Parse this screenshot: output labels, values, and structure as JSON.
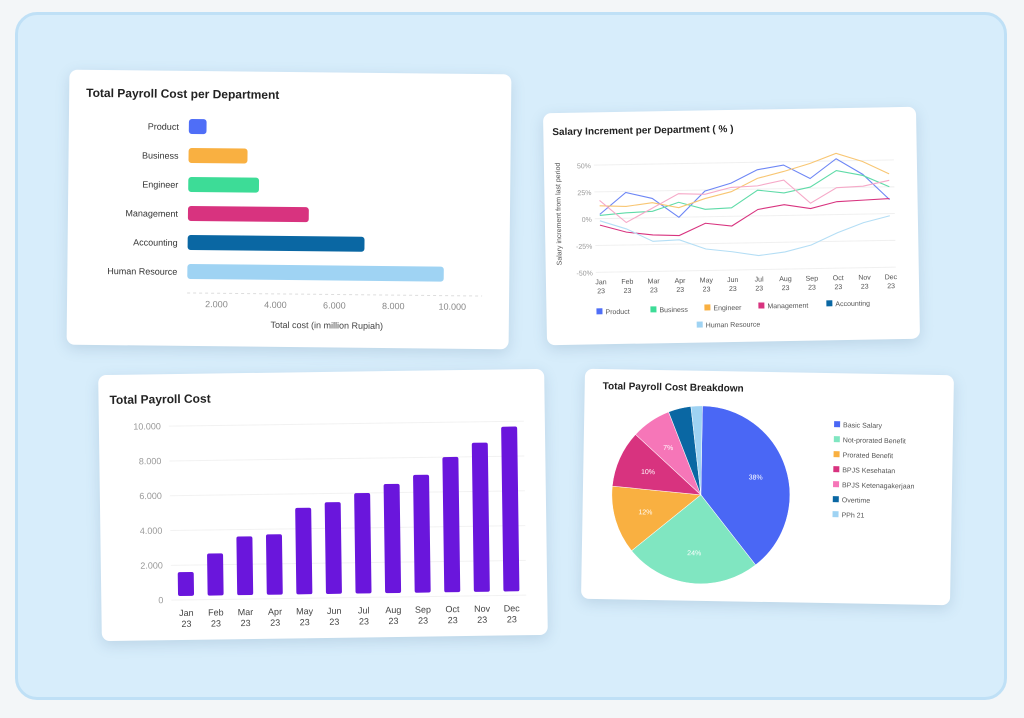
{
  "chart_data": [
    {
      "type": "bar",
      "orientation": "horizontal",
      "title": "Total Payroll Cost per Department",
      "categories": [
        "Product",
        "Business",
        "Engineer",
        "Management",
        "Accounting",
        "Human Resource"
      ],
      "values": [
        1600,
        3000,
        3400,
        5100,
        7000,
        9700
      ],
      "colors": [
        "#4f6ef7",
        "#f9b041",
        "#3ddc97",
        "#d8337f",
        "#0a67a3",
        "#9fd3f3"
      ],
      "xlabel": "Total cost (in million Rupiah)",
      "xticks": [
        "2.000",
        "4.000",
        "6.000",
        "8.000",
        "10.000"
      ],
      "xtick_values": [
        2000,
        4000,
        6000,
        8000,
        10000
      ],
      "xlim": [
        1000,
        10500
      ],
      "grid": false
    },
    {
      "type": "line",
      "title": "Salary Increment per Department ( % )",
      "ylabel": "Salary increment from last period",
      "categories": [
        "Jan 23",
        "Feb 23",
        "Mar 23",
        "Apr 23",
        "May 23",
        "Jun 23",
        "Jul 23",
        "Aug 23",
        "Sep 23",
        "Oct 23",
        "Nov 23",
        "Dec 23"
      ],
      "yticks": [
        "50%",
        "25%",
        "0%",
        "-25%",
        "-50%"
      ],
      "ytick_values": [
        50,
        25,
        0,
        -25,
        -50
      ],
      "ylim": [
        -50,
        60
      ],
      "series": [
        {
          "name": "Product",
          "color": "#6d86f5",
          "values": [
            4,
            24,
            18,
            0,
            24,
            31,
            43,
            47,
            34,
            52,
            37,
            13
          ]
        },
        {
          "name": "Business",
          "color": "#5fdba8",
          "values": [
            3,
            5,
            6,
            14,
            7,
            8,
            24,
            21,
            26,
            41,
            36,
            25
          ]
        },
        {
          "name": "Engineer",
          "color": "#f8c673",
          "values": [
            12,
            11,
            14,
            9,
            17,
            23,
            35,
            41,
            48,
            57,
            49,
            37
          ]
        },
        {
          "name": "Management",
          "color": "#d8337f",
          "values": [
            -6,
            -13,
            -16,
            -17,
            -6,
            -9,
            6,
            10,
            6,
            12,
            13,
            14
          ]
        },
        {
          "name": "",
          "color": "#f6a9c8",
          "values": [
            17,
            -4,
            9,
            22,
            21,
            27,
            28,
            33,
            11,
            25,
            26,
            31
          ]
        },
        {
          "name": "Human Resource",
          "color": "#b4def5",
          "values": [
            -2,
            -10,
            -22,
            -21,
            -30,
            -33,
            -37,
            -34,
            -28,
            -17,
            -8,
            -2
          ]
        }
      ],
      "legend": [
        {
          "name": "Product",
          "color": "#4f6ef7"
        },
        {
          "name": "Business",
          "color": "#3ddc97"
        },
        {
          "name": "Engineer",
          "color": "#f9b041"
        },
        {
          "name": "Management",
          "color": "#d8337f"
        },
        {
          "name": "Accounting",
          "color": "#0a67a3"
        },
        {
          "name": "Human Resource",
          "color": "#9fd3f3"
        }
      ],
      "legend_position": "bottom",
      "grid": true
    },
    {
      "type": "bar",
      "title": "Total Payroll Cost",
      "categories": [
        "Jan 23",
        "Feb 23",
        "Mar 23",
        "Apr 23",
        "May 23",
        "Jun 23",
        "Jul 23",
        "Aug 23",
        "Sep 23",
        "Oct 23",
        "Nov 23",
        "Dec 23"
      ],
      "values": [
        1600,
        2650,
        3600,
        3700,
        5200,
        5500,
        6000,
        6500,
        7000,
        8000,
        8800,
        9700
      ],
      "color": "#6a16dc",
      "yticks": [
        "10.000",
        "8.000",
        "6.000",
        "4.000",
        "2.000",
        "0"
      ],
      "ytick_values": [
        10000,
        8000,
        6000,
        4000,
        2000,
        0
      ],
      "ylim": [
        0,
        10000
      ],
      "grid": true
    },
    {
      "type": "pie",
      "title": "Total Payroll Cost Breakdown",
      "slices": [
        {
          "name": "Basic Salary",
          "value": 38,
          "label": "38%",
          "color": "#4a67f5"
        },
        {
          "name": "Not-prorated Benefit",
          "value": 24,
          "label": "24%",
          "color": "#80e6c1"
        },
        {
          "name": "Prorated Benefit",
          "value": 12,
          "label": "12%",
          "color": "#f9b041"
        },
        {
          "name": "BPJS Kesehatan",
          "value": 10,
          "label": "10%",
          "color": "#d8337f"
        },
        {
          "name": "BPJS Ketenagakerjaan",
          "value": 7,
          "label": "7%",
          "color": "#f676b8"
        },
        {
          "name": "Overtime",
          "value": 4,
          "label": "",
          "color": "#0a67a3"
        },
        {
          "name": "PPh 21",
          "value": 2,
          "label": "",
          "color": "#9fd3f3"
        }
      ],
      "legend_position": "right"
    }
  ]
}
